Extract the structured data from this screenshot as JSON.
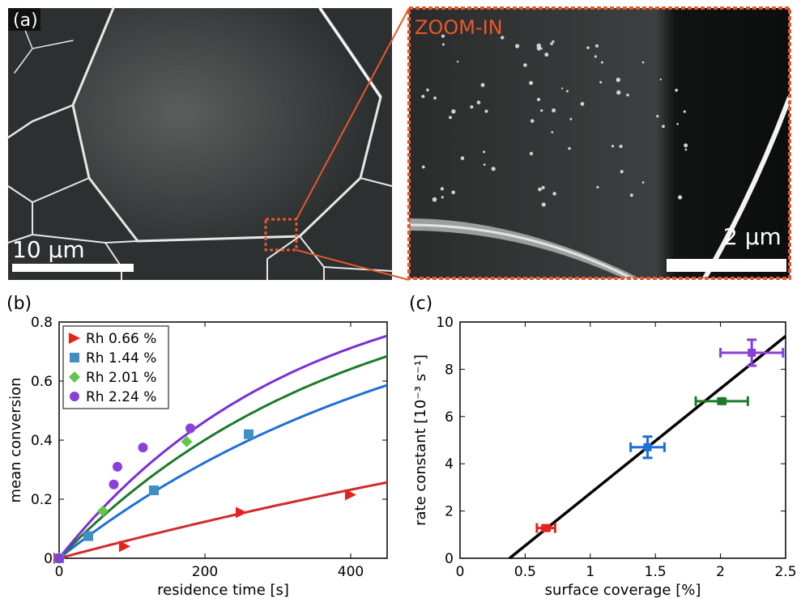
{
  "panel_a": {
    "label": "(a)",
    "zoom_label": "ZOOM-IN",
    "scalebar_left": "10 µm",
    "scalebar_right": "2 µm",
    "accent_color": "#e8572a"
  },
  "chart_data": [
    {
      "panel": "(b)",
      "type": "scatter",
      "xlabel": "residence time [s]",
      "ylabel": "mean conversion",
      "xlim": [
        0,
        450
      ],
      "ylim": [
        0,
        0.8
      ],
      "xticks": [
        0,
        200,
        400
      ],
      "yticks": [
        0,
        0.2,
        0.4,
        0.6,
        0.8
      ],
      "ytick_labels": [
        "0",
        "0.2",
        "0.4",
        "0.6",
        "0.8"
      ],
      "legend_position": "top-left",
      "series": [
        {
          "name": "Rh 0.66 %",
          "color": "#e8211d",
          "marker": "triangle-right",
          "line_color": "#d12b2b",
          "x": [
            0,
            90,
            250,
            400
          ],
          "y": [
            0,
            0.04,
            0.155,
            0.215
          ],
          "fit": {
            "k": 0.00066
          }
        },
        {
          "name": "Rh 1.44 %",
          "color": "#3f8fc4",
          "marker": "square",
          "line_color": "#1f6fd8",
          "x": [
            0,
            40,
            130,
            260
          ],
          "y": [
            0,
            0.075,
            0.23,
            0.42
          ],
          "fit": {
            "k": 0.00196
          }
        },
        {
          "name": "Rh 2.01 %",
          "color": "#5ec84c",
          "marker": "diamond",
          "line_color": "#1d7a2a",
          "x": [
            0,
            60,
            175
          ],
          "y": [
            0,
            0.16,
            0.395
          ],
          "fit": {
            "k": 0.00256
          }
        },
        {
          "name": "Rh 2.24 %",
          "color": "#8a3fd6",
          "marker": "circle",
          "line_color": "#7a2fd6",
          "x": [
            0,
            75,
            80,
            115,
            180
          ],
          "y": [
            0,
            0.25,
            0.31,
            0.375,
            0.44
          ],
          "fit": {
            "k": 0.00311
          }
        }
      ]
    },
    {
      "panel": "(c)",
      "type": "scatter",
      "xlabel": "surface coverage [%]",
      "ylabel": "rate constant [10⁻³ s⁻¹]",
      "xlim": [
        0,
        2.5
      ],
      "ylim": [
        0,
        10
      ],
      "xticks": [
        0,
        0.5,
        1,
        1.5,
        2,
        2.5
      ],
      "xtick_labels": [
        "0",
        "0.5",
        "1",
        "1.5",
        "2",
        "2.5"
      ],
      "yticks": [
        0,
        2,
        4,
        6,
        8,
        10
      ],
      "fit_line": {
        "x": [
          0.38,
          2.5
        ],
        "y": [
          0,
          9.4
        ],
        "color": "#000000"
      },
      "points": [
        {
          "x": 0.66,
          "y": 1.28,
          "xerr": 0.07,
          "yerr": 0.1,
          "color": "#e8211d"
        },
        {
          "x": 1.44,
          "y": 4.7,
          "xerr": 0.13,
          "yerr": 0.45,
          "color": "#1f6fd8"
        },
        {
          "x": 2.01,
          "y": 6.65,
          "xerr": 0.2,
          "yerr": 0.1,
          "color": "#1d7a2a"
        },
        {
          "x": 2.24,
          "y": 8.7,
          "xerr": 0.24,
          "yerr": 0.55,
          "color": "#8a3fd6"
        }
      ]
    }
  ]
}
